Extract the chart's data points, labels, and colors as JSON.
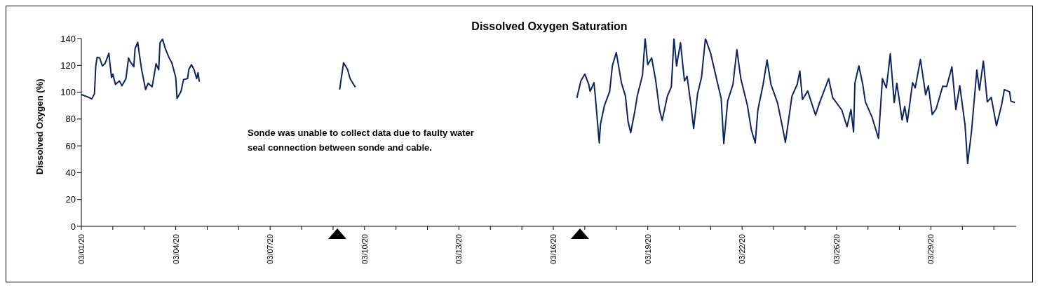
{
  "chart_data": {
    "type": "line",
    "title": "Dissolved Oxygen Saturation",
    "ylabel": "Dissolved Oxygen (%)",
    "annotations": [
      "Sonde was unable to collect data due to faulty water seal connection between sonde and cable."
    ],
    "x": [
      "--03-01T00:00",
      "--03-01T04:00",
      "--03-01T08:00",
      "--03-01T10:00",
      "--03-01T11:00",
      "--03-01T12:00",
      "--03-01T14:00",
      "--03-01T16:00",
      "--03-01T18:00",
      "--03-01T21:00",
      "--03-01T23:00",
      "--03-02T00:00",
      "--03-02T02:00",
      "--03-02T05:00",
      "--03-02T07:00",
      "--03-02T10:00",
      "--03-02T12:00",
      "--03-02T13:00",
      "--03-02T16:00",
      "--03-02T17:00",
      "--03-02T19:00",
      "--03-02T20:00",
      "--03-02T22:00",
      "--03-03T01:00",
      "--03-03T03:00",
      "--03-03T06:00",
      "--03-03T09:00",
      "--03-03T11:00",
      "--03-03T12:00",
      "--03-03T14:00",
      "--03-03T16:00",
      "--03-03T19:00",
      "--03-03T21:00",
      "--03-04T00:00",
      "--03-04T01:00",
      "--03-04T04:00",
      "--03-04T06:00",
      "--03-04T09:00",
      "--03-04T10:00",
      "--03-04T12:00",
      "--03-04T14:00",
      "--03-04T16:00",
      "--03-04T17:00",
      "--03-04T18:00",
      "--03-06T00:00",
      "--03-09T05:00",
      "--03-09T08:00",
      "--03-09T11:00",
      "--03-09T13:00",
      "--03-09T17:00",
      "--03-13T00:00",
      "--03-16T18:00",
      "--03-16T19:00",
      "--03-16T21:00",
      "--03-17T00:00",
      "--03-17T03:00",
      "--03-17T04:00",
      "--03-17T07:00",
      "--03-17T08:00",
      "--03-17T11:00",
      "--03-17T12:00",
      "--03-17T15:00",
      "--03-17T19:00",
      "--03-17T21:00",
      "--03-18T00:00",
      "--03-18T04:00",
      "--03-18T07:00",
      "--03-18T09:00",
      "--03-18T11:00",
      "--03-18T14:00",
      "--03-18T16:00",
      "--03-18T20:00",
      "--03-18T22:00",
      "--03-19T00:00",
      "--03-19T03:00",
      "--03-19T06:00",
      "--03-19T09:00",
      "--03-19T11:00",
      "--03-19T15:00",
      "--03-19T18:00",
      "--03-19T20:00",
      "--03-19T22:00",
      "--03-20T01:00",
      "--03-20T04:00",
      "--03-20T06:00",
      "--03-20T09:00",
      "--03-20T11:00",
      "--03-20T14:00",
      "--03-20T17:00",
      "--03-20T20:00",
      "--03-21T00:00",
      "--03-21T04:00",
      "--03-21T08:00",
      "--03-21T10:00",
      "--03-21T13:00",
      "--03-21T17:00",
      "--03-21T20:00",
      "--03-21T23:00",
      "--03-22T04:00",
      "--03-22T07:00",
      "--03-22T10:00",
      "--03-22T12:00",
      "--03-22T16:00",
      "--03-22T19:00",
      "--03-22T22:00",
      "--03-23T03:00",
      "--03-23T07:00",
      "--03-23T09:00",
      "--03-23T12:00",
      "--03-23T14:00",
      "--03-23T18:00",
      "--03-23T20:00",
      "--03-23T22:00",
      "--03-24T02:00",
      "--03-24T08:00",
      "--03-24T11:00",
      "--03-24T18:00",
      "--03-24T21:00",
      "--03-25T04:00",
      "--03-25T08:00",
      "--03-25T11:00",
      "--03-25T13:00",
      "--03-25T14:00",
      "--03-25T17:00",
      "--03-25T20:00",
      "--03-25T22:00",
      "--03-26T03:00",
      "--03-26T08:00",
      "--03-26T11:00",
      "--03-26T14:00",
      "--03-26T17:00",
      "--03-26T20:00",
      "--03-26T22:00",
      "--03-27T02:00",
      "--03-27T04:00",
      "--03-27T06:00",
      "--03-27T10:00",
      "--03-27T12:00",
      "--03-27T16:00",
      "--03-27T20:00",
      "--03-27T22:00",
      "--03-28T01:00",
      "--03-28T04:00",
      "--03-28T09:00",
      "--03-28T12:00",
      "--03-28T16:00",
      "--03-28T19:00",
      "--03-28T22:00",
      "--03-29T02:00",
      "--03-29T04:00",
      "--03-29T07:00",
      "--03-29T11:00",
      "--03-29T13:00",
      "--03-29T16:00",
      "--03-29T19:00",
      "--03-29T22:00",
      "--03-30T02:00",
      "--03-30T06:00",
      "--03-30T08:00",
      "--03-30T12:00",
      "--03-30T13:00",
      "--03-30T16:00"
    ],
    "series": [
      {
        "color": "#0a2463",
        "values": [
          98.3,
          96.8,
          95,
          98.8,
          119.6,
          126,
          125.5,
          119.6,
          121.3,
          129,
          111,
          113.5,
          105.8,
          108.4,
          104.9,
          110.1,
          125.5,
          123.2,
          118.9,
          132.6,
          137.2,
          130,
          116.7,
          102,
          106.7,
          104,
          121.3,
          116.7,
          136.9,
          139.5,
          132.6,
          125.5,
          122,
          111,
          95.3,
          100.5,
          109.5,
          110.1,
          117,
          120.5,
          116.7,
          110.1,
          114.5,
          107.8,
          null,
          102,
          122,
          117,
          110.1,
          103.7,
          null,
          95.7,
          100.2,
          108.4,
          113.5,
          105.8,
          100.6,
          107.1,
          97.1,
          62.2,
          76.4,
          90.2,
          100.6,
          119.6,
          129.6,
          106.7,
          97.1,
          78.1,
          69.8,
          85,
          97.1,
          112.7,
          140,
          120.5,
          125.5,
          109.3,
          86.7,
          79,
          97.1,
          104,
          140,
          119.6,
          136.9,
          108.4,
          111.9,
          90.2,
          72.9,
          98.8,
          111,
          140,
          129,
          111.9,
          95.4,
          61.7,
          93.6,
          105.8,
          131.7,
          110.1,
          90.2,
          72.1,
          62.2,
          86.7,
          105.8,
          123.9,
          105.8,
          92,
          72.9,
          62.6,
          83.3,
          97.1,
          105.8,
          115.8,
          94.6,
          100.9,
          82.9,
          92,
          110.1,
          96.1,
          86.7,
          74.3,
          87.1,
          70.3,
          106.7,
          119.6,
          105.8,
          92.8,
          81.6,
          65.6,
          110.1,
          103.2,
          128.6,
          92.3,
          106.7,
          79.3,
          89.4,
          77.8,
          107.1,
          103.2,
          124.4,
          98,
          104.9,
          83.3,
          87.6,
          104.5,
          104.2,
          118.9,
          87.1,
          104.9,
          75.5,
          46.9,
          71.3,
          116.5,
          101.5,
          123.2,
          92.8,
          96.1,
          74.9,
          91,
          101.9,
          100.2,
          93.3,
          92.3
        ]
      }
    ],
    "xlim": [
      "--03-01",
      "--03-30T17:00"
    ],
    "xticks": [
      {
        "value": "--03-01",
        "label": "03/01/20"
      },
      {
        "value": "--03-02",
        "label": null
      },
      {
        "value": "--03-03",
        "label": null
      },
      {
        "value": "--03-04",
        "label": "03/04/20"
      },
      {
        "value": "--03-05",
        "label": null
      },
      {
        "value": "--03-06",
        "label": null
      },
      {
        "value": "--03-07",
        "label": "03/07/20"
      },
      {
        "value": "--03-08",
        "label": null
      },
      {
        "value": "--03-09",
        "label": null
      },
      {
        "value": "--03-10",
        "label": "03/10/20"
      },
      {
        "value": "--03-11",
        "label": null
      },
      {
        "value": "--03-12",
        "label": null
      },
      {
        "value": "--03-13",
        "label": "03/13/20"
      },
      {
        "value": "--03-14",
        "label": null
      },
      {
        "value": "--03-15",
        "label": null
      },
      {
        "value": "--03-16",
        "label": "03/16/20"
      },
      {
        "value": "--03-17",
        "label": null
      },
      {
        "value": "--03-18",
        "label": null
      },
      {
        "value": "--03-19",
        "label": "03/19/20"
      },
      {
        "value": "--03-20",
        "label": null
      },
      {
        "value": "--03-21",
        "label": null
      },
      {
        "value": "--03-22",
        "label": "03/22/20"
      },
      {
        "value": "--03-23",
        "label": null
      },
      {
        "value": "--03-24",
        "label": null
      },
      {
        "value": "--03-25",
        "label": "03/26/20"
      },
      {
        "value": "--03-26",
        "label": null
      },
      {
        "value": "--03-27",
        "label": null
      },
      {
        "value": "--03-28",
        "label": "03/29/20"
      },
      {
        "value": "--03-29",
        "label": null
      },
      {
        "value": "--03-30",
        "label": null
      }
    ],
    "ylim": [
      0,
      140
    ],
    "yticks": [
      0,
      20,
      40,
      60,
      80,
      100,
      120,
      140
    ],
    "grid": false,
    "marker": "none",
    "line_style": "solid"
  }
}
